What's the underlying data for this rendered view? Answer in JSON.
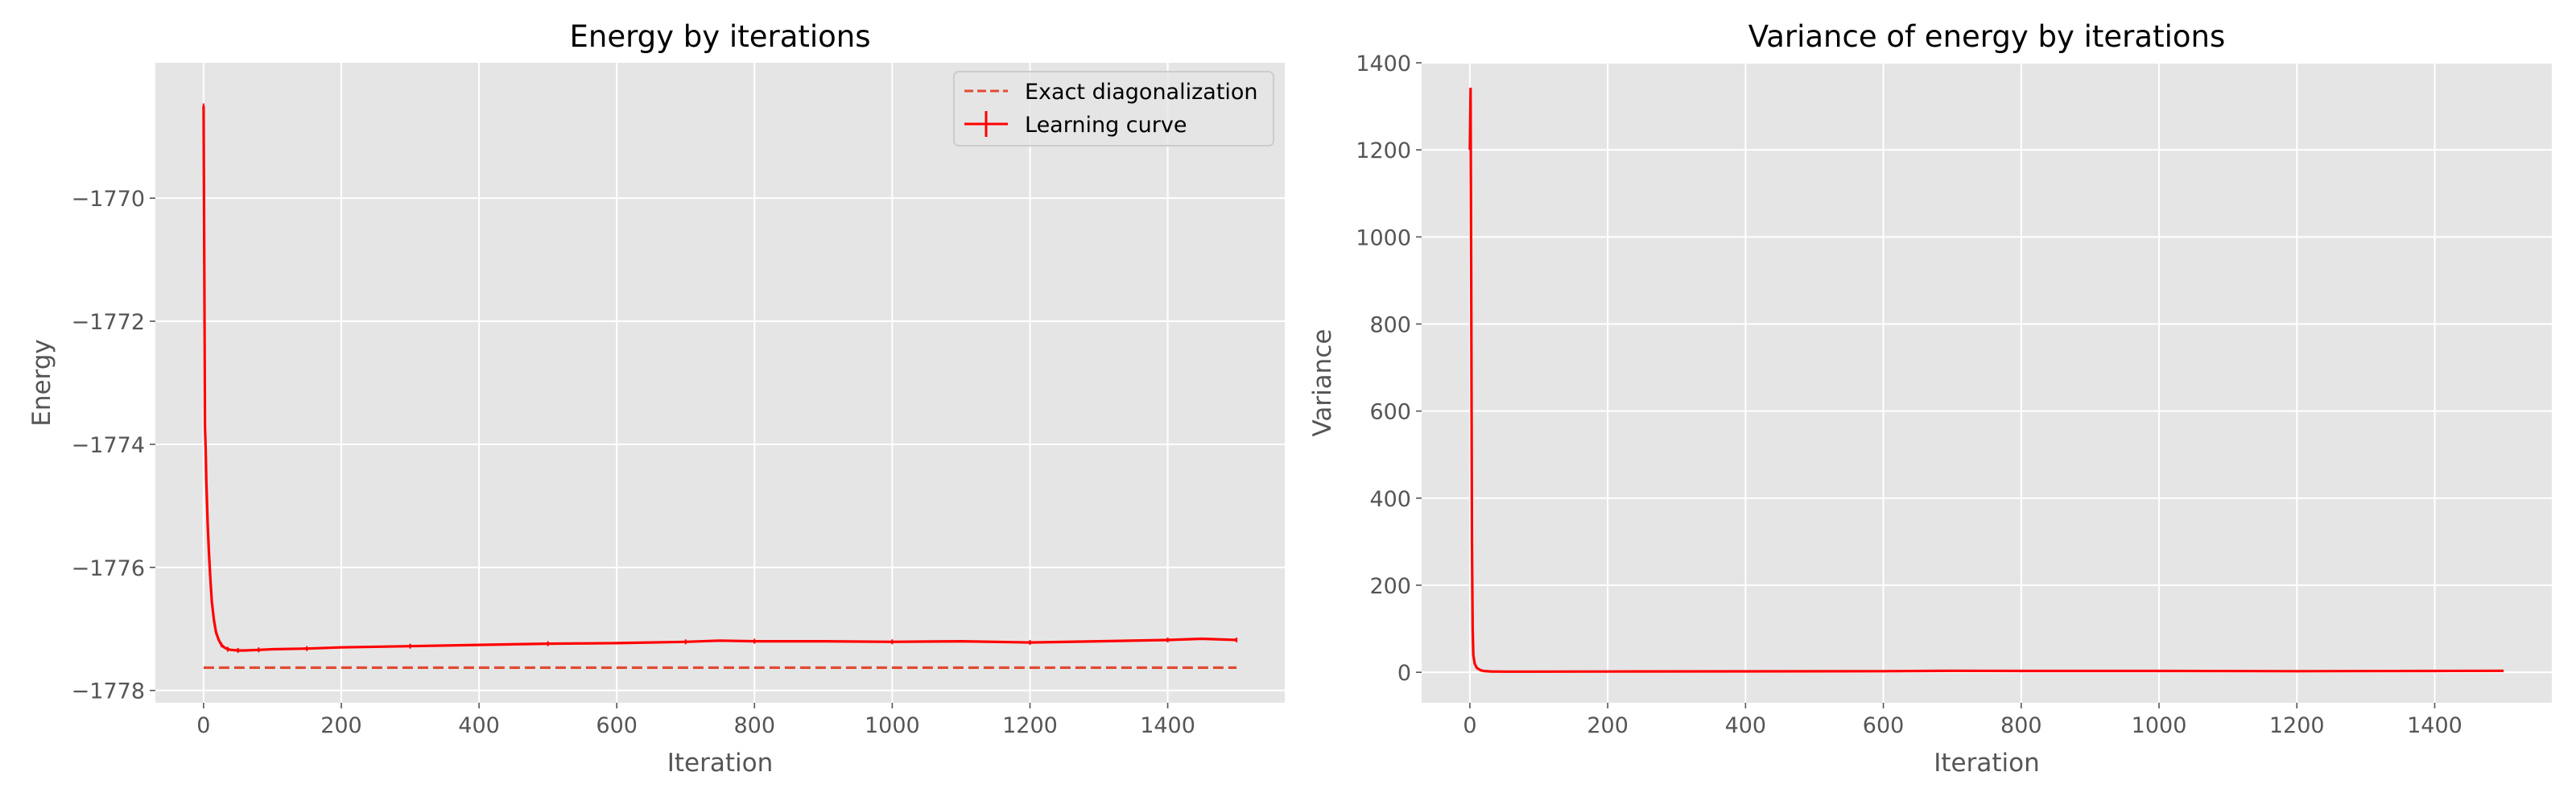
{
  "chart_data": [
    {
      "type": "line",
      "title": "Energy by iterations",
      "xlabel": "Iteration",
      "ylabel": "Energy",
      "xlim": [
        -70,
        1570
      ],
      "ylim": [
        -1778.2,
        -1767.8
      ],
      "xticks": [
        0,
        200,
        400,
        600,
        800,
        1000,
        1200,
        1400
      ],
      "xtick_labels": [
        "0",
        "200",
        "400",
        "600",
        "800",
        "1000",
        "1200",
        "1400"
      ],
      "yticks": [
        -1778,
        -1776,
        -1774,
        -1772,
        -1770
      ],
      "ytick_labels": [
        "−1778",
        "−1776",
        "−1774",
        "−1772",
        "−1770"
      ],
      "grid": true,
      "legend": "top-right",
      "series": [
        {
          "name": "Exact diagonalization",
          "style": "dashed",
          "color": "#e24a33",
          "x": [
            0,
            1500
          ],
          "y": [
            -1777.63,
            -1777.63
          ]
        },
        {
          "name": "Learning curve",
          "style": "solid-errorbar",
          "color": "#ff0000",
          "x": [
            0,
            1,
            2,
            3,
            4,
            6,
            8,
            10,
            12,
            15,
            18,
            22,
            26,
            30,
            35,
            40,
            50,
            60,
            80,
            100,
            150,
            200,
            300,
            400,
            500,
            600,
            700,
            750,
            800,
            900,
            1000,
            1100,
            1200,
            1300,
            1400,
            1450,
            1500
          ],
          "y": [
            -1768.5,
            -1770.9,
            -1773.7,
            -1774.1,
            -1774.6,
            -1775.3,
            -1775.8,
            -1776.2,
            -1776.55,
            -1776.85,
            -1777.05,
            -1777.18,
            -1777.26,
            -1777.3,
            -1777.33,
            -1777.34,
            -1777.35,
            -1777.35,
            -1777.34,
            -1777.33,
            -1777.32,
            -1777.3,
            -1777.28,
            -1777.26,
            -1777.24,
            -1777.23,
            -1777.21,
            -1777.19,
            -1777.2,
            -1777.2,
            -1777.21,
            -1777.2,
            -1777.22,
            -1777.2,
            -1777.18,
            -1777.16,
            -1777.18
          ]
        }
      ]
    },
    {
      "type": "line",
      "title": "Variance of energy by iterations",
      "xlabel": "Iteration",
      "ylabel": "Variance",
      "xlim": [
        -70,
        1570
      ],
      "ylim": [
        -70,
        1400
      ],
      "xticks": [
        0,
        200,
        400,
        600,
        800,
        1000,
        1200,
        1400
      ],
      "xtick_labels": [
        "0",
        "200",
        "400",
        "600",
        "800",
        "1000",
        "1200",
        "1400"
      ],
      "yticks": [
        0,
        200,
        400,
        600,
        800,
        1000,
        1200,
        1400
      ],
      "ytick_labels": [
        "0",
        "200",
        "400",
        "600",
        "800",
        "1000",
        "1200",
        "1400"
      ],
      "grid": true,
      "series": [
        {
          "color": "#ff0000",
          "style": "solid",
          "x": [
            0,
            1,
            2,
            3,
            4,
            5,
            7,
            10,
            15,
            20,
            30,
            50,
            100,
            200,
            400,
            600,
            700,
            800,
            1000,
            1200,
            1400,
            1500
          ],
          "y": [
            1200,
            1340,
            900,
            300,
            100,
            40,
            20,
            10,
            5,
            3,
            2,
            1.5,
            1.5,
            1.7,
            2.2,
            2.5,
            3.5,
            3,
            3,
            2.5,
            3,
            3.5
          ]
        }
      ]
    }
  ]
}
